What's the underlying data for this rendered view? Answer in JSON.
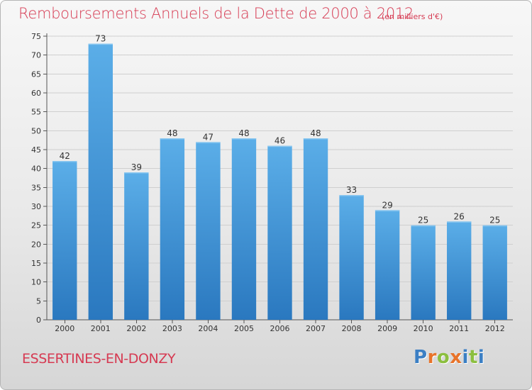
{
  "title": "Remboursements Annuels de la Dette de 2000 à 2012",
  "subtitle": "(en milliers d'€)",
  "commune": "ESSERTINES-EN-DONZY",
  "logo": {
    "letters": [
      "P",
      "r",
      "o",
      "x",
      "i",
      "t",
      "i"
    ],
    "colors": [
      "#3b7fc4",
      "#e8732a",
      "#8cbf3f",
      "#e8732a",
      "#3b7fc4",
      "#8cbf3f",
      "#3b7fc4"
    ]
  },
  "colors": {
    "bar_top": "#5baee8",
    "bar_bottom": "#2a78bf",
    "text_accent": "#d63a52"
  },
  "chart_data": {
    "type": "bar",
    "categories": [
      "2000",
      "2001",
      "2002",
      "2003",
      "2004",
      "2005",
      "2006",
      "2007",
      "2008",
      "2009",
      "2010",
      "2011",
      "2012"
    ],
    "values": [
      42,
      73,
      39,
      48,
      47,
      48,
      46,
      48,
      33,
      29,
      25,
      26,
      25
    ],
    "data_labels": [
      "42",
      "73",
      "39",
      "48",
      "47",
      "48",
      "46",
      "48",
      "33",
      "29",
      "25",
      "26",
      "25"
    ],
    "yticks": [
      0,
      5,
      10,
      15,
      20,
      25,
      30,
      35,
      40,
      45,
      50,
      55,
      60,
      65,
      70,
      75
    ],
    "ylim": [
      0,
      75
    ],
    "grid": true
  }
}
